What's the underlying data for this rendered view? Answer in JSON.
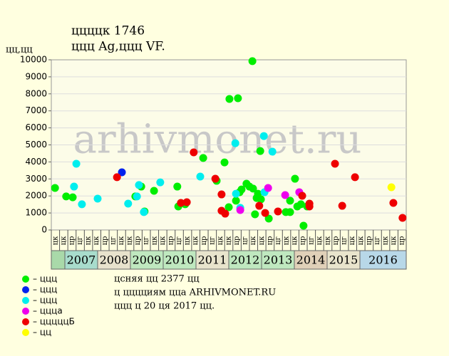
{
  "chart_data": {
    "type": "scatter",
    "title": "ццццк 1746",
    "subtitle": "ццц Ag,ццц VF.",
    "y_label": "цц,цц",
    "watermark": "arhivmonet.ru",
    "xlim": [
      2006.587,
      2017.413
    ],
    "ylim": [
      0,
      10000
    ],
    "yticks": [
      0,
      1000,
      2000,
      3000,
      4000,
      5000,
      6000,
      7000,
      8000,
      9000,
      10000
    ],
    "grid": true,
    "quarter_labels": [
      "цк",
      "цк",
      "цр",
      "цг",
      "цк",
      "цк",
      "цр",
      "цг",
      "цк",
      "цк",
      "цр",
      "цг",
      "цк",
      "цк",
      "цр",
      "цг",
      "цк",
      "цк",
      "цр",
      "цг",
      "цк",
      "цк",
      "цр",
      "цг",
      "цк",
      "цк",
      "цр",
      "цг",
      "цк",
      "цк",
      "цр",
      "цг",
      "цк",
      "цк",
      "цр",
      "цг",
      "цк",
      "цк",
      "цр",
      "цг",
      "цк",
      "цк",
      "цр"
    ],
    "years": [
      2007,
      2008,
      2009,
      2010,
      2011,
      2012,
      2013,
      2014,
      2015,
      2016
    ],
    "year_colors": [
      "#a9d9a9",
      "#a8dccc",
      "#e8e2cc",
      "#bfe8bf",
      "#bfe8bf",
      "#e8e4cc",
      "#bfe8bf",
      "#bfe8bf",
      "#e0d0b8",
      "#e8e4cc",
      "#b8d8e8"
    ],
    "series": [
      {
        "name": "– ццц",
        "color": "#00ee00",
        "x": [
          2006.7,
          2007.04,
          2007.24,
          2009.15,
          2009.33,
          2009.43,
          2009.72,
          2010.43,
          2010.46,
          2010.67,
          2011.22,
          2011.63,
          2011.87,
          2012.02,
          2012.0,
          2012.22,
          2012.28,
          2012.33,
          2012.39,
          2012.54,
          2012.63,
          2012.72,
          2012.74,
          2012.8,
          2012.85,
          2012.89,
          2012.96,
          2012.98,
          2013.22,
          2013.74,
          2013.87,
          2013.87,
          2014.02,
          2014.09,
          2014.2,
          2014.28,
          2014.39
        ],
        "values": [
          2470,
          1970,
          1920,
          1970,
          2550,
          1090,
          2300,
          2550,
          1380,
          1510,
          4230,
          2890,
          3970,
          7700,
          1340,
          1720,
          7740,
          2220,
          2380,
          2720,
          2550,
          9920,
          2430,
          920,
          1880,
          2130,
          4640,
          1800,
          670,
          1050,
          1050,
          1720,
          3010,
          1380,
          1510,
          250,
          1380
        ]
      },
      {
        "name": "– ццц",
        "color": "#0022ee",
        "x": [
          2008.74
        ],
        "values": [
          3390
        ]
      },
      {
        "name": "– ццц",
        "color": "#00eeee",
        "x": [
          2007.35,
          2007.52,
          2008.0,
          2007.28,
          2008.93,
          2009.2,
          2009.26,
          2009.41,
          2009.91,
          2011.13,
          2012.2,
          2012.22,
          2012.35,
          2013.07,
          2013.33,
          2013.09
        ],
        "values": [
          3890,
          1510,
          1840,
          2550,
          1550,
          1970,
          2640,
          1050,
          2800,
          3140,
          5100,
          2130,
          1300,
          5520,
          4600,
          2220
        ]
      },
      {
        "name": "– цццa",
        "color": "#ee00ee",
        "x": [
          2012.35,
          2013.2,
          2013.72,
          2014.15
        ],
        "values": [
          1170,
          2470,
          2050,
          2220
        ]
      },
      {
        "name": "– цццццБ",
        "color": "#ee0000",
        "x": [
          2008.59,
          2010.54,
          2010.72,
          2010.93,
          2011.59,
          2011.78,
          2011.78,
          2011.89,
          2012.93,
          2013.11,
          2013.5,
          2014.24,
          2014.46,
          2014.46,
          2015.24,
          2015.46,
          2015.85,
          2017.02,
          2017.3
        ],
        "values": [
          3100,
          1590,
          1630,
          4560,
          3010,
          2090,
          1130,
          960,
          1420,
          1000,
          1090,
          2010,
          1550,
          1380,
          3890,
          1420,
          3100,
          1590,
          710
        ]
      },
      {
        "name": "– цц",
        "color": "#ffff00",
        "x": [
          2016.96
        ],
        "values": [
          2510
        ]
      }
    ],
    "notes": [
      "цсняя цц 2377 цц",
      "ц цццциям цца ARHIVMONET.RU",
      "ццц ц 20 ця 2017 цц."
    ]
  }
}
